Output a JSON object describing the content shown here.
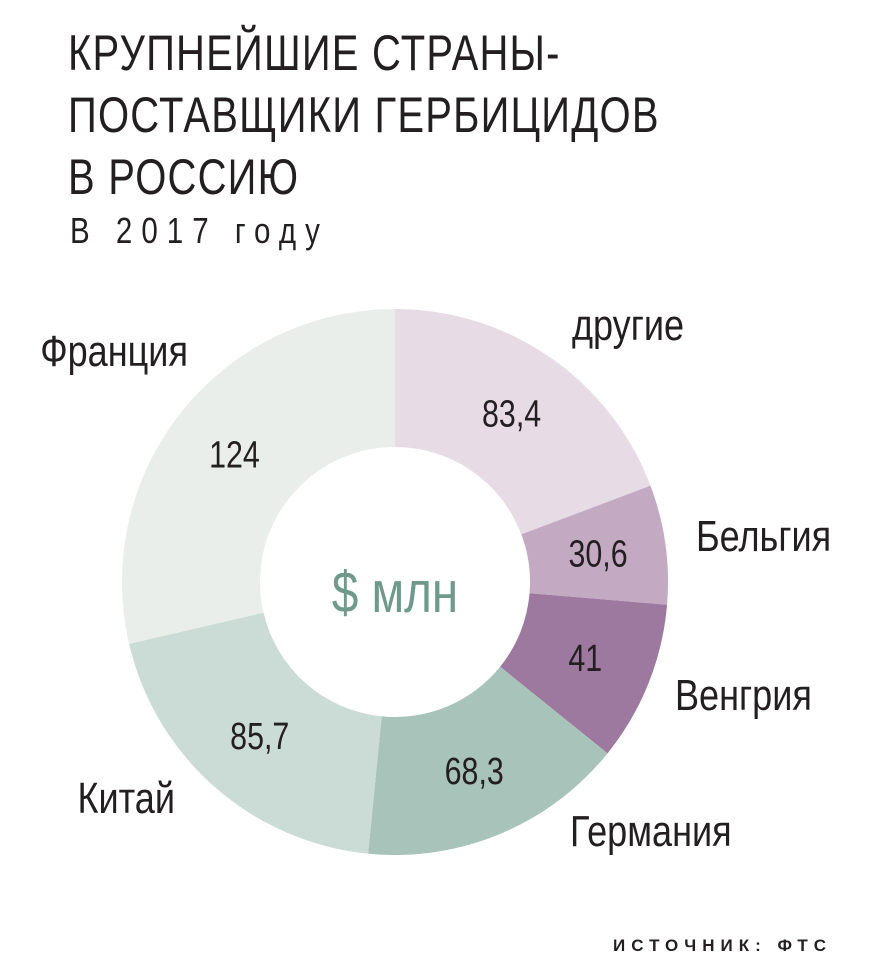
{
  "title": "КРУПНЕЙШИЕ СТРАНЫ-\nПОСТАВЩИКИ ГЕРБИЦИДОВ\nВ РОССИЮ",
  "subtitle": "В 2017 году",
  "source": "ИСТОЧНИК: ФТС",
  "center_label": "$ млн",
  "colors": {
    "center_label": "#6f9a8b",
    "text": "#231f20"
  },
  "chart_data": {
    "type": "pie",
    "variant": "donut",
    "unit": "$ млн",
    "slices": [
      {
        "label": "другие",
        "value": 83.4,
        "value_label": "83,4",
        "color": "#e7dbe5"
      },
      {
        "label": "Бельгия",
        "value": 30.6,
        "value_label": "30,6",
        "color": "#c3aac2"
      },
      {
        "label": "Венгрия",
        "value": 41,
        "value_label": "41",
        "color": "#9e799f"
      },
      {
        "label": "Германия",
        "value": 68.3,
        "value_label": "68,3",
        "color": "#a8c3b9"
      },
      {
        "label": "Китай",
        "value": 85.7,
        "value_label": "85,7",
        "color": "#cbdbd5"
      },
      {
        "label": "Франция",
        "value": 124,
        "value_label": "124",
        "color": "#e9eeeb"
      }
    ]
  }
}
